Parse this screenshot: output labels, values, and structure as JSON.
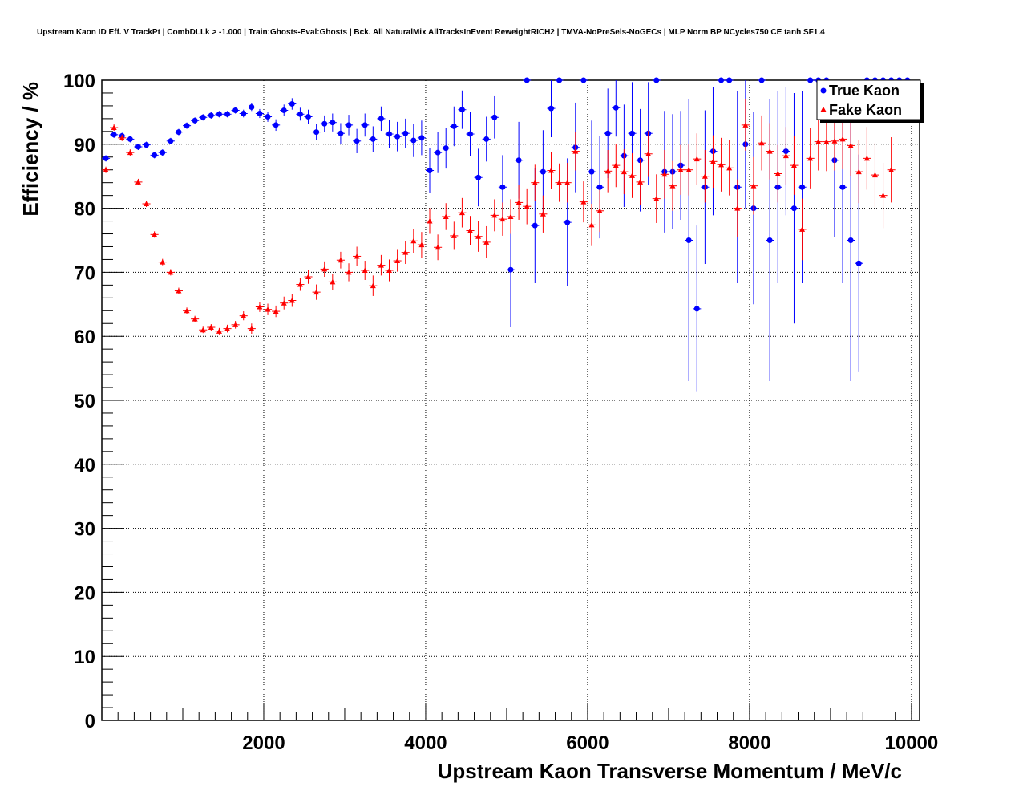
{
  "chart_data": {
    "type": "scatter",
    "title": "Upstream Kaon ID Eff. V TrackPt | CombDLLk > -1.000 | Train:Ghosts-Eval:Ghosts | Bck. All NaturalMix AllTracksInEvent ReweightRICH2 | TMVA-NoPreSels-NoGECs | MLP Norm BP NCycles750 CE tanh SF1.4",
    "xlabel": "Upstream Kaon Transverse Momentum / MeV/c",
    "ylabel": "Efficiency / %",
    "xlim": [
      0,
      10100
    ],
    "ylim": [
      0,
      100
    ],
    "x_ticks": [
      2000,
      4000,
      6000,
      8000,
      10000
    ],
    "y_ticks": [
      0,
      10,
      20,
      30,
      40,
      50,
      60,
      70,
      80,
      90,
      100
    ],
    "grid": true,
    "legend_position": "top-right",
    "colors": {
      "true": "#0000ff",
      "fake": "#ff0000"
    },
    "series": [
      {
        "name": "True Kaon",
        "marker": "circle",
        "color": "#0000ff",
        "points": [
          [
            50,
            87.8,
            0.5
          ],
          [
            150,
            91.5,
            0.5
          ],
          [
            250,
            91.3,
            0.5
          ],
          [
            350,
            90.8,
            0.5
          ],
          [
            450,
            89.6,
            0.5
          ],
          [
            550,
            89.9,
            0.5
          ],
          [
            650,
            88.3,
            0.5
          ],
          [
            750,
            88.7,
            0.5
          ],
          [
            850,
            90.5,
            0.5
          ],
          [
            950,
            91.9,
            0.5
          ],
          [
            1050,
            92.9,
            0.5
          ],
          [
            1150,
            93.7,
            0.5
          ],
          [
            1250,
            94.2,
            0.5
          ],
          [
            1350,
            94.5,
            0.5
          ],
          [
            1450,
            94.7,
            0.5
          ],
          [
            1550,
            94.7,
            0.5
          ],
          [
            1650,
            95.3,
            0.5
          ],
          [
            1750,
            94.8,
            0.6
          ],
          [
            1850,
            95.8,
            0.6
          ],
          [
            1950,
            94.8,
            0.7
          ],
          [
            2050,
            94.3,
            0.8
          ],
          [
            2150,
            93.0,
            0.9
          ],
          [
            2250,
            95.3,
            0.9
          ],
          [
            2350,
            96.3,
            0.9
          ],
          [
            2450,
            94.7,
            1.0
          ],
          [
            2550,
            94.3,
            1.1
          ],
          [
            2650,
            91.9,
            1.3
          ],
          [
            2750,
            93.2,
            1.3
          ],
          [
            2850,
            93.4,
            1.4
          ],
          [
            2950,
            91.7,
            1.6
          ],
          [
            3050,
            93.0,
            1.6
          ],
          [
            3150,
            90.5,
            1.9
          ],
          [
            3250,
            93.0,
            1.8
          ],
          [
            3350,
            90.8,
            2.0
          ],
          [
            3450,
            94.0,
            1.9
          ],
          [
            3550,
            91.6,
            2.2
          ],
          [
            3650,
            91.2,
            2.3
          ],
          [
            3750,
            91.7,
            2.3
          ],
          [
            3850,
            90.6,
            2.6
          ],
          [
            3950,
            91.0,
            2.7
          ],
          [
            4050,
            85.9,
            3.5
          ],
          [
            4150,
            88.7,
            3.2
          ],
          [
            4250,
            89.4,
            3.2
          ],
          [
            4350,
            92.8,
            3.1
          ],
          [
            4450,
            95.4,
            3.0
          ],
          [
            4550,
            91.6,
            3.5
          ],
          [
            4650,
            84.8,
            4.5
          ],
          [
            4750,
            90.8,
            3.5
          ],
          [
            4850,
            94.2,
            3.3
          ],
          [
            4950,
            83.3,
            5.0
          ],
          [
            5050,
            70.4,
            9.0
          ],
          [
            5150,
            87.5,
            6.0
          ],
          [
            5250,
            100,
            0
          ],
          [
            5350,
            77.3,
            9.0
          ],
          [
            5450,
            85.7,
            6.5
          ],
          [
            5550,
            95.6,
            4.5
          ],
          [
            5650,
            100,
            0
          ],
          [
            5750,
            77.8,
            10
          ],
          [
            5850,
            89.5,
            7.0
          ],
          [
            5950,
            100,
            0
          ],
          [
            6050,
            85.7,
            8.0
          ],
          [
            6150,
            83.3,
            8.0
          ],
          [
            6250,
            91.7,
            7.0
          ],
          [
            6350,
            95.7,
            4.5
          ],
          [
            6450,
            88.2,
            8.0
          ],
          [
            6550,
            91.7,
            8.0
          ],
          [
            6650,
            87.5,
            8.0
          ],
          [
            6750,
            91.7,
            8.0
          ],
          [
            6850,
            100,
            0
          ],
          [
            6950,
            85.7,
            9.5
          ],
          [
            7050,
            85.7,
            9.0
          ],
          [
            7150,
            86.7,
            8.5
          ],
          [
            7250,
            75.0,
            22
          ],
          [
            7350,
            64.3,
            13
          ],
          [
            7450,
            83.3,
            12
          ],
          [
            7550,
            88.9,
            10
          ],
          [
            7650,
            100,
            0
          ],
          [
            7750,
            100,
            0
          ],
          [
            7850,
            83.3,
            15
          ],
          [
            7950,
            90.0,
            10
          ],
          [
            8050,
            80.0,
            15
          ],
          [
            8150,
            100,
            0
          ],
          [
            8250,
            75.0,
            22
          ],
          [
            8350,
            83.3,
            15
          ],
          [
            8450,
            88.9,
            10
          ],
          [
            8550,
            80.0,
            18
          ],
          [
            8650,
            83.3,
            15
          ],
          [
            8750,
            100,
            0
          ],
          [
            8850,
            100,
            0
          ],
          [
            8950,
            100,
            0
          ],
          [
            9050,
            87.5,
            12
          ],
          [
            9150,
            83.3,
            15
          ],
          [
            9250,
            75.0,
            22
          ],
          [
            9350,
            71.4,
            17
          ],
          [
            9450,
            100,
            0
          ],
          [
            9550,
            100,
            0
          ],
          [
            9650,
            100,
            0
          ],
          [
            9750,
            100,
            0
          ],
          [
            9850,
            100,
            0
          ],
          [
            9950,
            100,
            0
          ]
        ]
      },
      {
        "name": "Fake Kaon",
        "marker": "triangle",
        "color": "#ff0000",
        "points": [
          [
            50,
            86.0,
            0.5
          ],
          [
            150,
            92.6,
            0.5
          ],
          [
            250,
            91.0,
            0.5
          ],
          [
            350,
            88.7,
            0.5
          ],
          [
            450,
            84.1,
            0.5
          ],
          [
            550,
            80.7,
            0.5
          ],
          [
            650,
            75.9,
            0.5
          ],
          [
            750,
            71.6,
            0.5
          ],
          [
            850,
            70.0,
            0.5
          ],
          [
            950,
            67.1,
            0.5
          ],
          [
            1050,
            64.0,
            0.5
          ],
          [
            1150,
            62.7,
            0.5
          ],
          [
            1250,
            61.0,
            0.5
          ],
          [
            1350,
            61.4,
            0.5
          ],
          [
            1450,
            60.8,
            0.5
          ],
          [
            1550,
            61.2,
            0.6
          ],
          [
            1650,
            61.8,
            0.6
          ],
          [
            1750,
            63.2,
            0.7
          ],
          [
            1850,
            61.2,
            0.8
          ],
          [
            1950,
            64.6,
            0.8
          ],
          [
            2050,
            64.2,
            0.9
          ],
          [
            2150,
            63.9,
            0.9
          ],
          [
            2250,
            65.2,
            1.0
          ],
          [
            2350,
            65.6,
            1.0
          ],
          [
            2450,
            68.1,
            1.0
          ],
          [
            2550,
            69.3,
            1.1
          ],
          [
            2650,
            66.9,
            1.2
          ],
          [
            2750,
            70.5,
            1.2
          ],
          [
            2850,
            68.5,
            1.3
          ],
          [
            2950,
            71.9,
            1.3
          ],
          [
            3050,
            70.0,
            1.4
          ],
          [
            3150,
            72.5,
            1.5
          ],
          [
            3250,
            70.3,
            1.5
          ],
          [
            3350,
            67.9,
            1.6
          ],
          [
            3450,
            71.1,
            1.6
          ],
          [
            3550,
            70.3,
            1.7
          ],
          [
            3650,
            71.8,
            1.7
          ],
          [
            3750,
            73.1,
            1.8
          ],
          [
            3850,
            74.9,
            1.9
          ],
          [
            3950,
            74.3,
            2.0
          ],
          [
            4050,
            78.0,
            2.0
          ],
          [
            4150,
            73.9,
            2.0
          ],
          [
            4250,
            78.7,
            2.1
          ],
          [
            4350,
            75.7,
            2.2
          ],
          [
            4450,
            79.3,
            2.3
          ],
          [
            4550,
            76.5,
            2.3
          ],
          [
            4650,
            75.6,
            2.4
          ],
          [
            4750,
            74.7,
            2.5
          ],
          [
            4850,
            78.9,
            2.5
          ],
          [
            4950,
            78.3,
            2.6
          ],
          [
            5050,
            78.7,
            2.7
          ],
          [
            5150,
            80.9,
            2.7
          ],
          [
            5250,
            80.3,
            2.8
          ],
          [
            5350,
            84.0,
            2.8
          ],
          [
            5450,
            79.1,
            2.9
          ],
          [
            5550,
            85.9,
            2.9
          ],
          [
            5650,
            84.0,
            3.0
          ],
          [
            5750,
            84.0,
            3.1
          ],
          [
            5850,
            88.9,
            3.0
          ],
          [
            5950,
            81.0,
            3.2
          ],
          [
            6050,
            77.4,
            3.3
          ],
          [
            6150,
            79.6,
            3.3
          ],
          [
            6250,
            85.8,
            3.3
          ],
          [
            6350,
            86.7,
            3.4
          ],
          [
            6450,
            85.7,
            3.5
          ],
          [
            6550,
            85.1,
            3.5
          ],
          [
            6650,
            84.1,
            3.6
          ],
          [
            6750,
            88.5,
            3.6
          ],
          [
            6850,
            81.5,
            3.8
          ],
          [
            6950,
            85.3,
            3.8
          ],
          [
            7050,
            83.5,
            3.9
          ],
          [
            7150,
            86.0,
            3.9
          ],
          [
            7250,
            86.0,
            4.0
          ],
          [
            7350,
            87.7,
            4.0
          ],
          [
            7450,
            85.0,
            4.1
          ],
          [
            7550,
            87.3,
            4.1
          ],
          [
            7650,
            86.8,
            4.2
          ],
          [
            7750,
            86.3,
            4.3
          ],
          [
            7850,
            80.0,
            4.5
          ],
          [
            7950,
            93.0,
            4.0
          ],
          [
            8050,
            83.5,
            4.5
          ],
          [
            8150,
            90.2,
            4.3
          ],
          [
            8250,
            88.9,
            4.4
          ],
          [
            8350,
            85.4,
            4.5
          ],
          [
            8450,
            88.2,
            4.5
          ],
          [
            8550,
            86.7,
            4.6
          ],
          [
            8650,
            76.7,
            4.8
          ],
          [
            8750,
            87.8,
            4.7
          ],
          [
            8850,
            90.4,
            4.5
          ],
          [
            8950,
            90.4,
            4.6
          ],
          [
            9050,
            90.5,
            4.6
          ],
          [
            9150,
            90.8,
            4.7
          ],
          [
            9250,
            89.8,
            4.8
          ],
          [
            9350,
            85.7,
            4.9
          ],
          [
            9450,
            87.8,
            4.9
          ],
          [
            9550,
            85.2,
            5.0
          ],
          [
            9650,
            82.0,
            5.1
          ],
          [
            9750,
            86.0,
            5.1
          ]
        ]
      }
    ]
  }
}
